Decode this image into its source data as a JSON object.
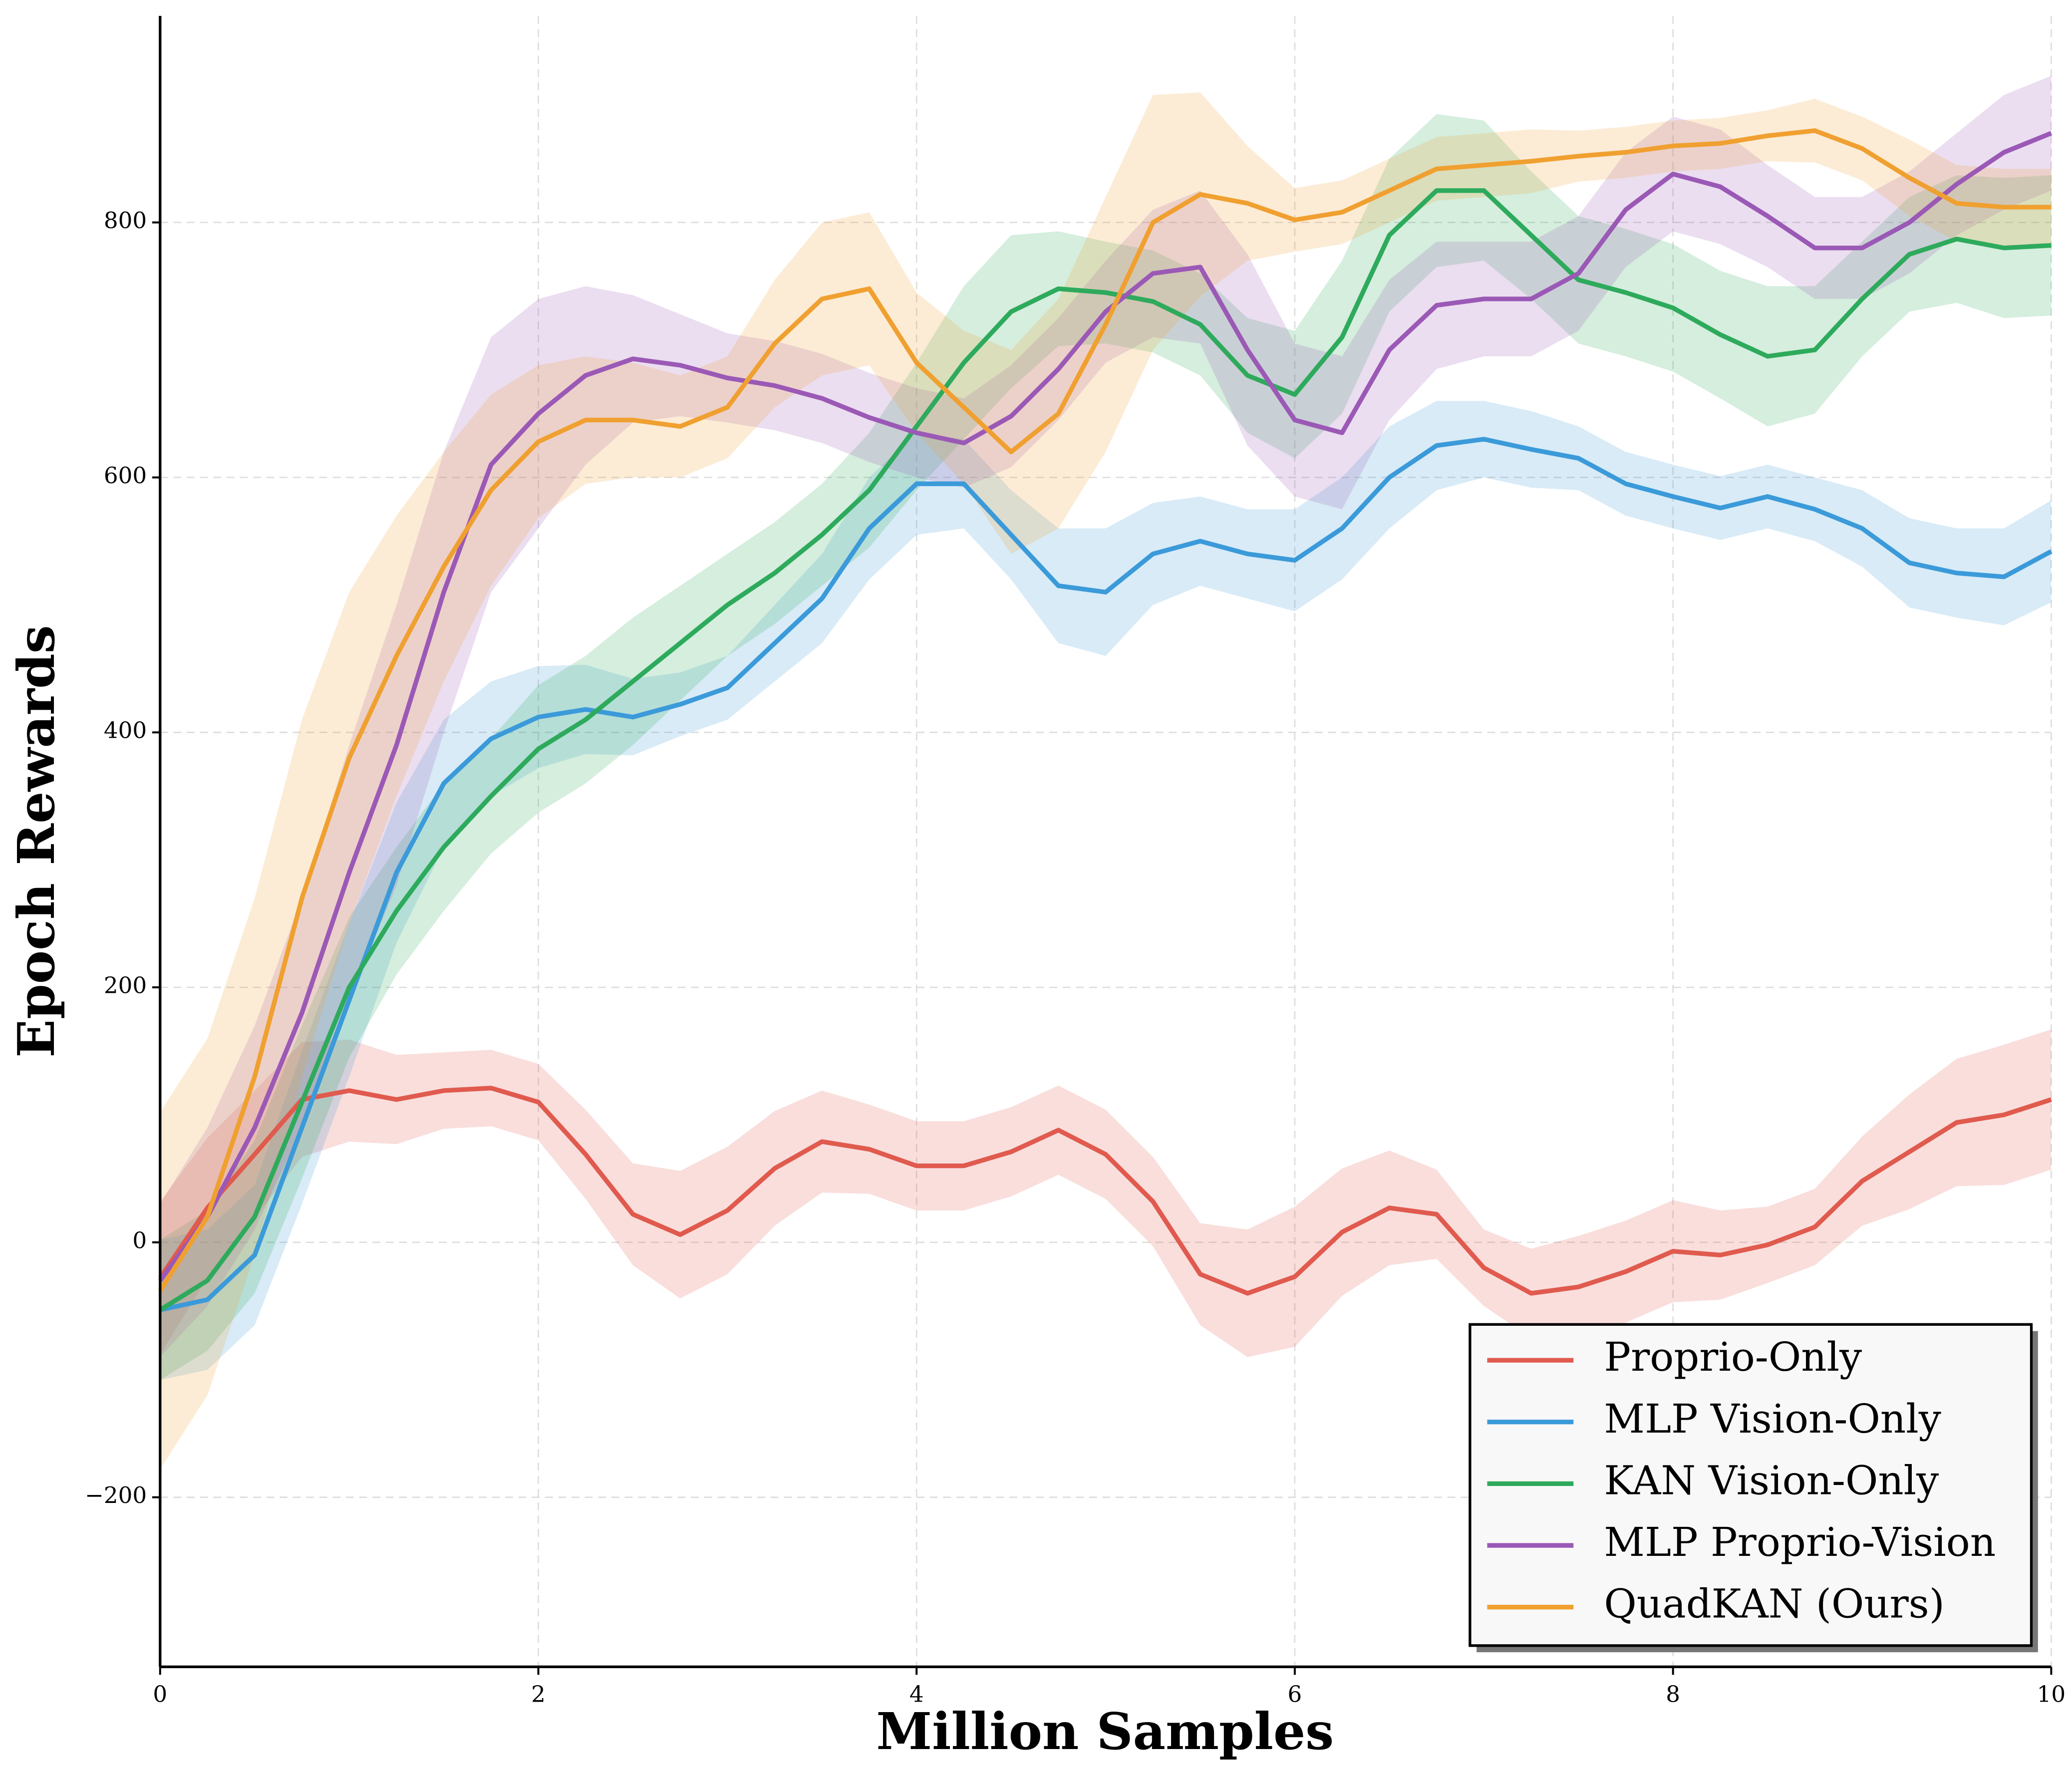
{
  "chart_data": {
    "type": "line",
    "xlabel": "Million Samples",
    "ylabel": "Epoch Rewards",
    "x": [
      0,
      0.25,
      0.5,
      0.75,
      1,
      1.25,
      1.5,
      1.75,
      2,
      2.25,
      2.5,
      2.75,
      3,
      3.25,
      3.5,
      3.75,
      4,
      4.25,
      4.5,
      4.75,
      5,
      5.25,
      5.5,
      5.75,
      6,
      6.25,
      6.5,
      6.75,
      7,
      7.25,
      7.5,
      7.75,
      8,
      8.25,
      8.5,
      8.75,
      9,
      9.25,
      9.5,
      9.75,
      10
    ],
    "xlim": [
      0,
      10
    ],
    "xticks": [
      0,
      2,
      4,
      6,
      8,
      10
    ],
    "ylim": [
      -333,
      962
    ],
    "yticks": [
      {
        "value": -200,
        "label": "−200"
      },
      0,
      200,
      400,
      600,
      800
    ],
    "grid": true,
    "legend": "lower right",
    "series": [
      {
        "name": "Proprio-Only",
        "color": "#e05a4e",
        "values": [
          -28,
          27,
          69,
          112,
          119,
          112,
          119,
          121,
          110,
          69,
          22,
          6,
          25,
          58,
          79,
          73,
          60,
          60,
          71,
          88,
          69,
          32,
          -25,
          -40,
          -27,
          8,
          27,
          22,
          -20,
          -40,
          -35,
          -23,
          -7,
          -10,
          -2,
          12,
          48,
          71,
          94,
          100,
          112
        ],
        "std": [
          60,
          55,
          50,
          45,
          40,
          35,
          30,
          30,
          30,
          35,
          40,
          50,
          50,
          45,
          40,
          35,
          35,
          35,
          35,
          35,
          35,
          35,
          40,
          50,
          55,
          50,
          45,
          35,
          30,
          35,
          40,
          40,
          40,
          35,
          30,
          30,
          35,
          45,
          50,
          55,
          55
        ]
      },
      {
        "name": "MLP Vision-Only",
        "color": "#3b9ad9",
        "values": [
          -53,
          -45,
          -10,
          90,
          190,
          290,
          360,
          395,
          412,
          418,
          412,
          422,
          435,
          470,
          505,
          560,
          595,
          595,
          555,
          515,
          510,
          540,
          550,
          540,
          535,
          560,
          600,
          625,
          630,
          622,
          615,
          595,
          585,
          576,
          585,
          575,
          560,
          533,
          525,
          522,
          542
        ],
        "std": [
          55,
          55,
          55,
          60,
          60,
          55,
          50,
          45,
          40,
          35,
          30,
          25,
          25,
          30,
          35,
          40,
          40,
          35,
          35,
          45,
          50,
          40,
          35,
          35,
          40,
          40,
          40,
          35,
          30,
          30,
          25,
          25,
          25,
          25,
          25,
          25,
          30,
          35,
          35,
          38,
          40
        ]
      },
      {
        "name": "KAN Vision-Only",
        "color": "#2eaa5c",
        "values": [
          -53,
          -30,
          20,
          110,
          200,
          260,
          310,
          350,
          387,
          410,
          440,
          470,
          500,
          525,
          555,
          590,
          640,
          690,
          730,
          748,
          745,
          738,
          720,
          680,
          665,
          710,
          790,
          825,
          825,
          790,
          755,
          745,
          733,
          712,
          695,
          700,
          740,
          775,
          787,
          780,
          782
        ],
        "std": [
          55,
          55,
          60,
          60,
          55,
          50,
          50,
          45,
          50,
          50,
          50,
          45,
          40,
          40,
          40,
          45,
          50,
          60,
          60,
          45,
          40,
          40,
          40,
          45,
          50,
          60,
          60,
          60,
          55,
          50,
          50,
          50,
          50,
          50,
          55,
          50,
          45,
          45,
          50,
          55,
          55
        ]
      },
      {
        "name": "MLP Proprio-Vision",
        "color": "#9b59b6",
        "values": [
          -30,
          20,
          90,
          180,
          290,
          390,
          510,
          610,
          650,
          680,
          693,
          688,
          678,
          672,
          662,
          647,
          635,
          627,
          648,
          685,
          730,
          760,
          765,
          700,
          645,
          635,
          700,
          735,
          740,
          740,
          760,
          810,
          838,
          828,
          805,
          780,
          780,
          800,
          830,
          855,
          870
        ],
        "std": [
          60,
          70,
          80,
          90,
          100,
          110,
          110,
          100,
          90,
          70,
          50,
          40,
          35,
          35,
          35,
          35,
          35,
          35,
          40,
          40,
          40,
          50,
          60,
          75,
          60,
          60,
          55,
          50,
          45,
          45,
          45,
          45,
          45,
          45,
          40,
          40,
          40,
          40,
          40,
          45,
          45
        ]
      },
      {
        "name": "QuadKAN (Ours)",
        "color": "#f0a030",
        "values": [
          -38,
          20,
          130,
          270,
          380,
          460,
          530,
          590,
          628,
          645,
          645,
          640,
          655,
          705,
          740,
          748,
          690,
          655,
          620,
          650,
          720,
          800,
          822,
          815,
          802,
          808,
          825,
          842,
          845,
          848,
          852,
          855,
          860,
          862,
          868,
          872,
          858,
          835,
          815,
          812,
          812
        ],
        "std": [
          140,
          140,
          140,
          140,
          130,
          110,
          90,
          75,
          60,
          50,
          45,
          40,
          40,
          50,
          60,
          60,
          55,
          60,
          80,
          90,
          100,
          100,
          80,
          45,
          25,
          25,
          25,
          25,
          25,
          25,
          20,
          20,
          20,
          20,
          20,
          25,
          25,
          30,
          30,
          30,
          30
        ]
      }
    ]
  }
}
